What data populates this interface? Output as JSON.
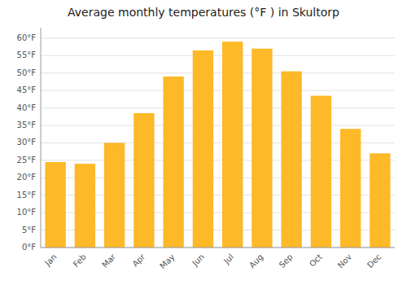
{
  "chart_data": {
    "type": "bar",
    "title": "Average monthly temperatures (°F ) in Skultorp",
    "categories": [
      "Jan",
      "Feb",
      "Mar",
      "Apr",
      "May",
      "Jun",
      "Jul",
      "Aug",
      "Sep",
      "Oct",
      "Nov",
      "Dec"
    ],
    "values": [
      24.5,
      24.0,
      30.0,
      38.5,
      49.0,
      56.5,
      59.0,
      57.0,
      50.5,
      43.5,
      34.0,
      27.0
    ],
    "color": "#FDB927",
    "ylim": [
      0,
      63
    ],
    "yticks": [
      {
        "value": 0,
        "label": "0°F"
      },
      {
        "value": 5,
        "label": "5°F"
      },
      {
        "value": 10,
        "label": "10°F"
      },
      {
        "value": 15,
        "label": "15°F"
      },
      {
        "value": 20,
        "label": "20°F"
      },
      {
        "value": 25,
        "label": "25°F"
      },
      {
        "value": 30,
        "label": "30°F"
      },
      {
        "value": 35,
        "label": "35°F"
      },
      {
        "value": 40,
        "label": "40°F"
      },
      {
        "value": 45,
        "label": "45°F"
      },
      {
        "value": 50,
        "label": "50°F"
      },
      {
        "value": 55,
        "label": "55°F"
      },
      {
        "value": 60,
        "label": "60°F"
      }
    ],
    "grid": true
  }
}
